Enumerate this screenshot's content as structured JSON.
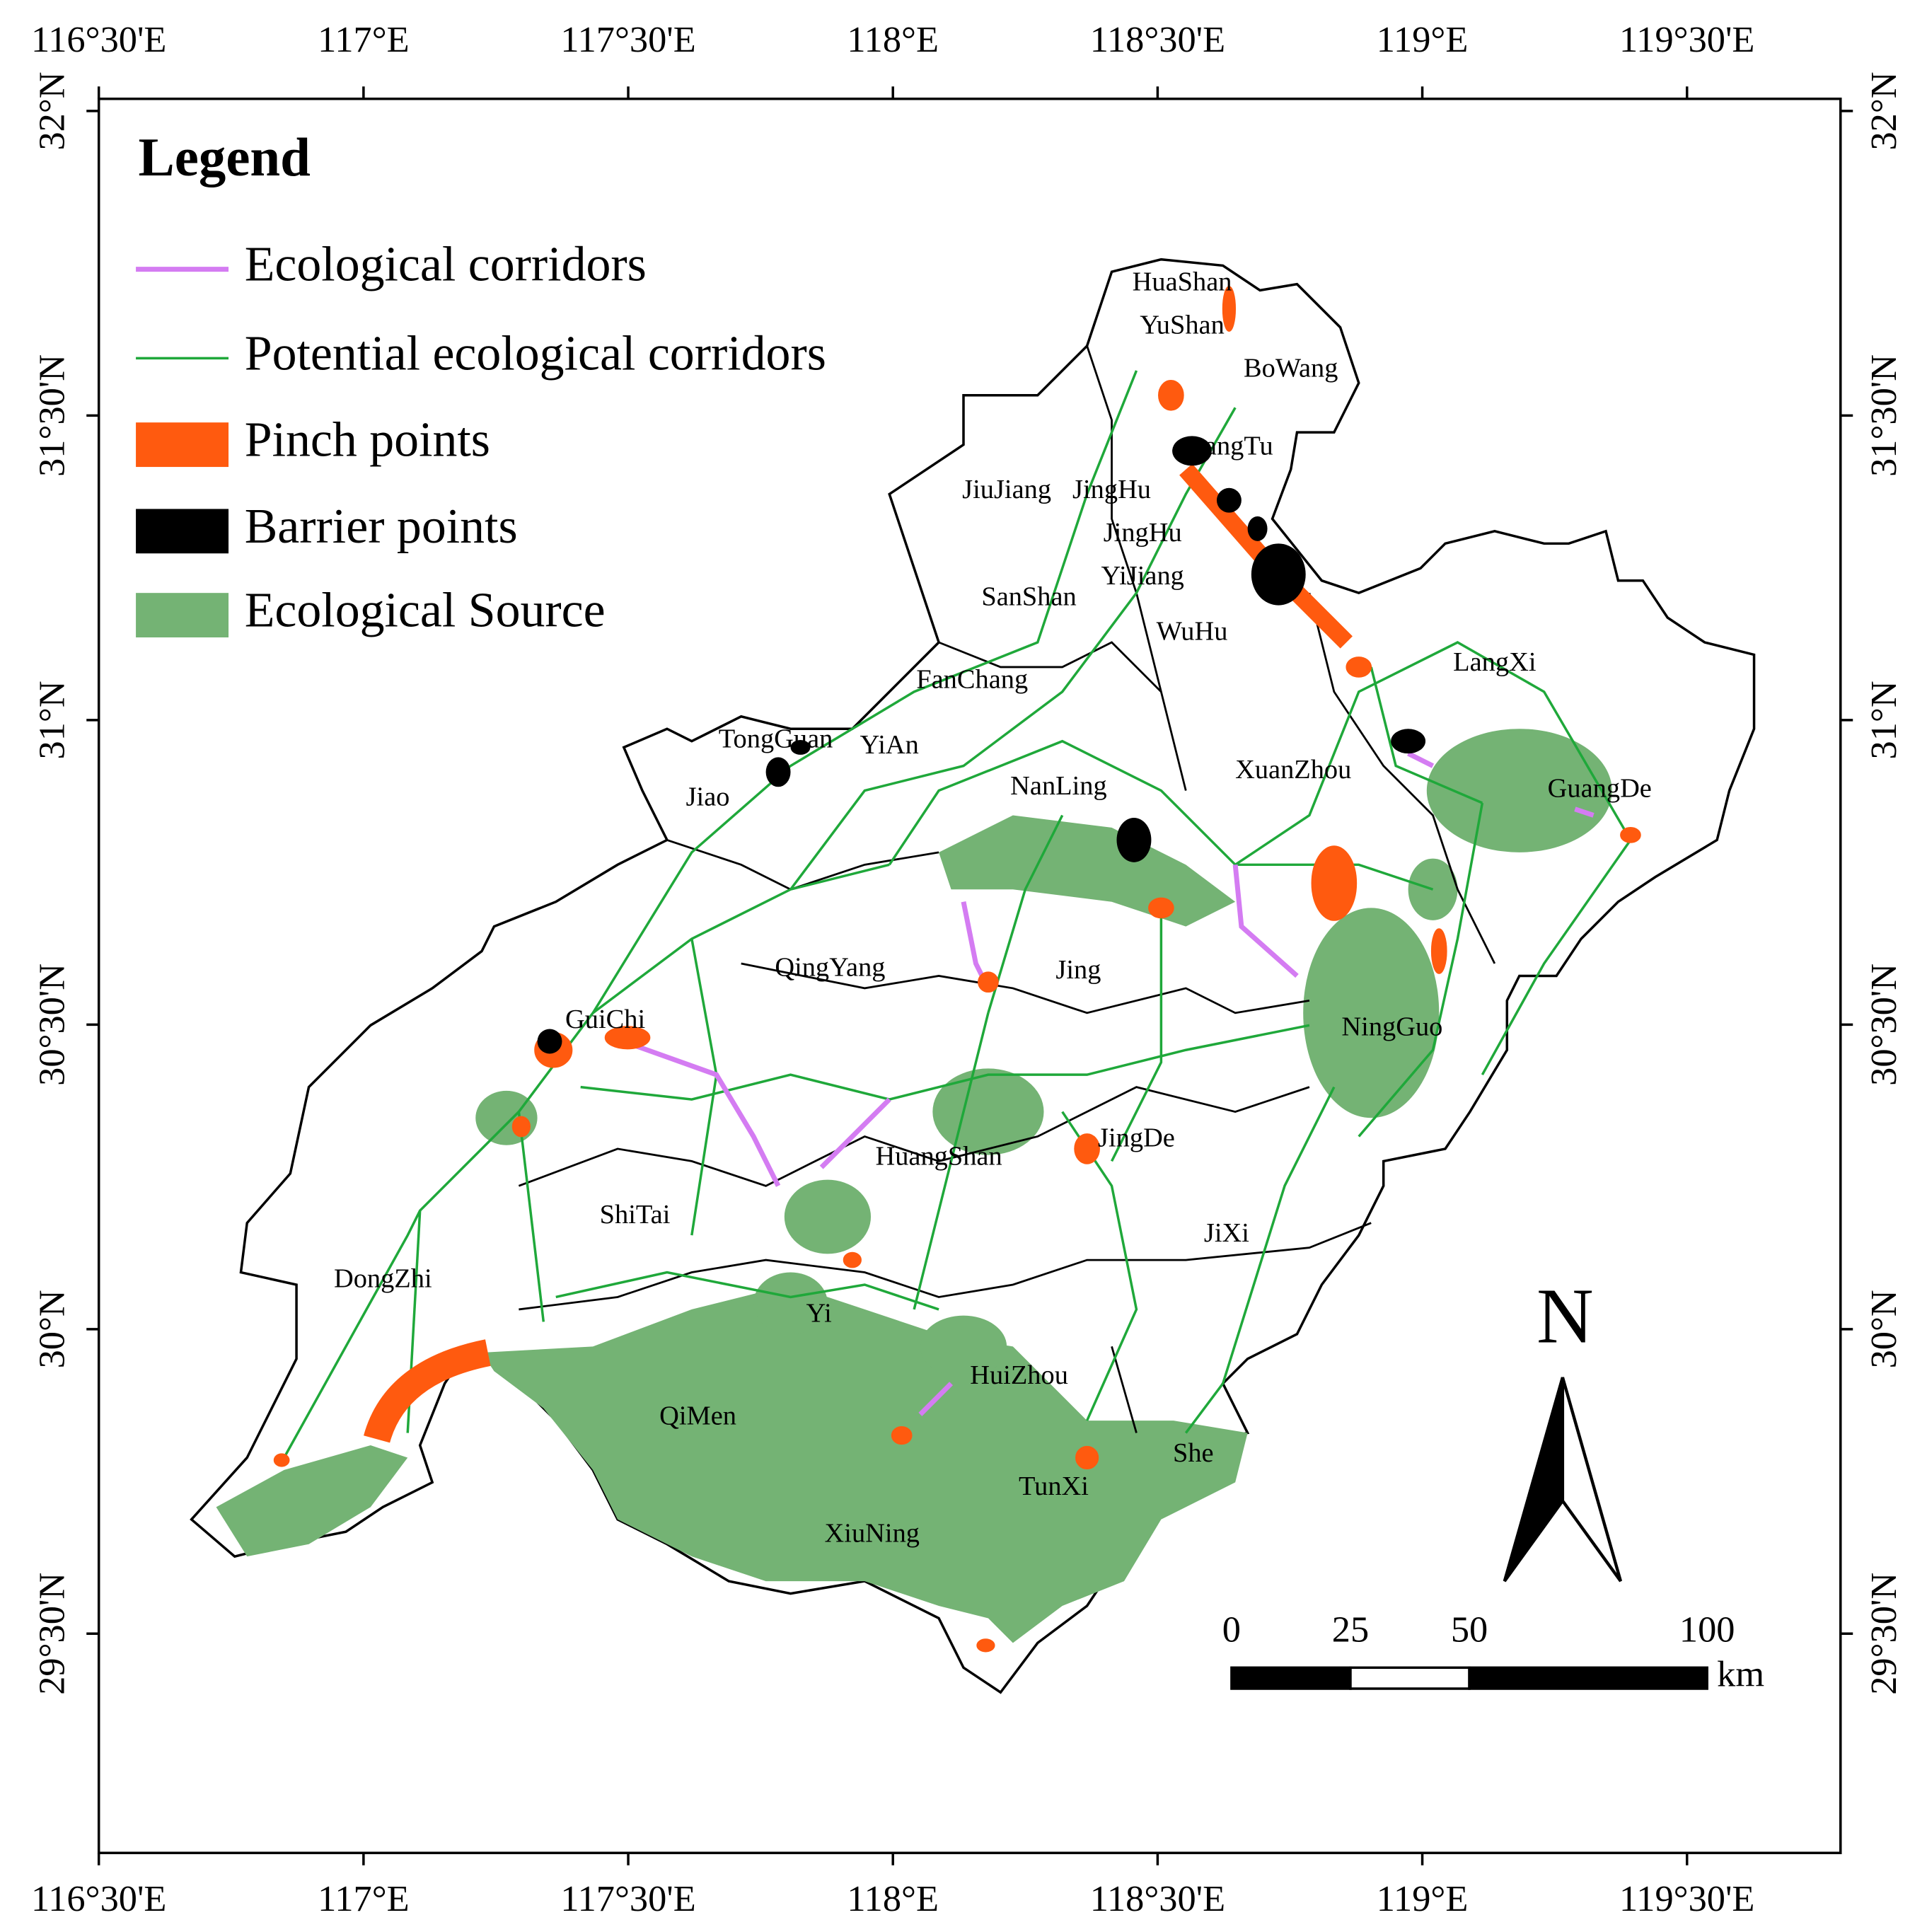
{
  "map": {
    "xlim": [
      116.5,
      119.79
    ],
    "ylim": [
      29.14,
      32.02
    ],
    "xticks": [
      {
        "value": 116.5,
        "label": "116°30'E"
      },
      {
        "value": 117,
        "label": "117°E"
      },
      {
        "value": 117.5,
        "label": "117°30'E"
      },
      {
        "value": 118,
        "label": "118°E"
      },
      {
        "value": 118.5,
        "label": "118°30'E"
      },
      {
        "value": 119,
        "label": "119°E"
      },
      {
        "value": 119.5,
        "label": "119°30'E"
      }
    ],
    "yticks": [
      {
        "value": 29.5,
        "label": "29°30'N"
      },
      {
        "value": 30,
        "label": "30°N"
      },
      {
        "value": 30.5,
        "label": "30°30'N"
      },
      {
        "value": 31,
        "label": "31°N"
      },
      {
        "value": 31.5,
        "label": "31°30'N"
      },
      {
        "value": 32,
        "label": "32°N"
      }
    ],
    "legend": {
      "title": "Legend",
      "items": [
        {
          "name": "Ecological corridors",
          "color": "#d47cf2"
        },
        {
          "name": "Potential ecological corridors",
          "color": "#1fa83a"
        },
        {
          "name": "Pinch points",
          "color": "#ff5a0f"
        },
        {
          "name": "Barrier points",
          "color": "#000000"
        },
        {
          "name": "Ecological Source",
          "color": "#74b374"
        }
      ]
    },
    "places": [
      "HuaShan",
      "YuShan",
      "BoWang",
      "DangTu",
      "JiuJiang",
      "JingHu",
      "JingHu",
      "YiJiang",
      "SanShan",
      "WuHu",
      "FanChang",
      "LangXi",
      "TongGuan",
      "YiAn",
      "Jiao",
      "NanLing",
      "XuanZhou",
      "GuangDe",
      "QingYang",
      "Jing",
      "GuiChi",
      "NingGuo",
      "JingDe",
      "HuangShan",
      "ShiTai",
      "JiXi",
      "DongZhi",
      "Yi",
      "HuiZhou",
      "QiMen",
      "She",
      "TunXi",
      "XiuNing"
    ],
    "north_label": "N",
    "scale_bar": {
      "ticks": [
        0,
        25,
        50,
        100
      ],
      "unit": "km"
    }
  }
}
